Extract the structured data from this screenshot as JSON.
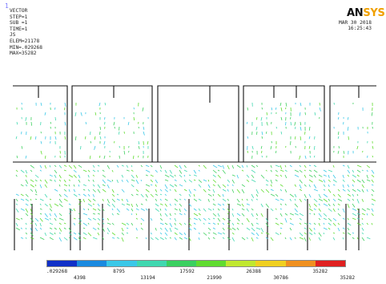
{
  "window_number": "1",
  "info_lines": [
    "VECTOR",
    "STEP=1",
    "SUB =1",
    "TIME=1",
    "JS",
    "ELEM=21178",
    "MIN=.029268",
    "MAX=35282"
  ],
  "logo": {
    "an": "AN",
    "sys": "SYS"
  },
  "stamp": {
    "date": "MAR 30 2018",
    "time": "16:25:43"
  },
  "legend": {
    "colors": [
      "#1030c8",
      "#1a8ae0",
      "#3ac8e8",
      "#40d8b0",
      "#3ad060",
      "#60dc30",
      "#c0e830",
      "#f0d020",
      "#f09020",
      "#e02020"
    ],
    "labels_top": [
      ".029268",
      "8795",
      "17592",
      "26388",
      "35282"
    ],
    "labels_bottom": [
      "4398",
      "13194",
      "21990",
      "30786",
      "35282"
    ]
  }
}
